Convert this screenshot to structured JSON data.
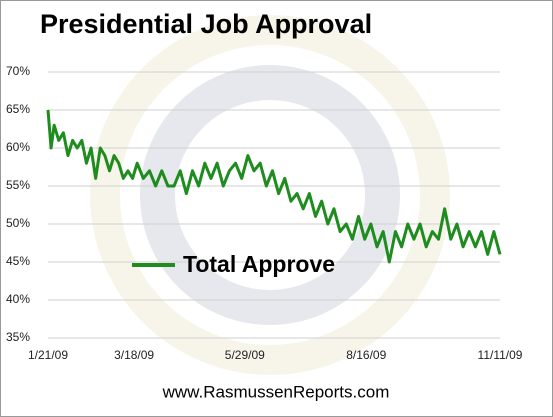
{
  "chart_data": {
    "type": "line",
    "title": "Presidential Job Approval",
    "source": "www.RasmussenReports.com",
    "x": [
      "1/21/09",
      "1/23/09",
      "1/25/09",
      "1/28/09",
      "1/31/09",
      "2/3/09",
      "2/6/09",
      "2/9/09",
      "2/12/09",
      "2/15/09",
      "2/18/09",
      "2/21/09",
      "2/24/09",
      "2/27/09",
      "3/2/09",
      "3/5/09",
      "3/8/09",
      "3/11/09",
      "3/14/09",
      "3/17/09",
      "3/20/09",
      "3/24/09",
      "3/28/09",
      "4/1/09",
      "4/5/09",
      "4/9/09",
      "4/13/09",
      "4/17/09",
      "4/21/09",
      "4/25/09",
      "4/29/09",
      "5/3/09",
      "5/7/09",
      "5/11/09",
      "5/15/09",
      "5/19/09",
      "5/23/09",
      "5/27/09",
      "5/31/09",
      "6/4/09",
      "6/8/09",
      "6/12/09",
      "6/16/09",
      "6/20/09",
      "6/24/09",
      "6/28/09",
      "7/2/09",
      "7/6/09",
      "7/10/09",
      "7/14/09",
      "7/18/09",
      "7/22/09",
      "7/26/09",
      "7/30/09",
      "8/3/09",
      "8/7/09",
      "8/11/09",
      "8/15/09",
      "8/19/09",
      "8/23/09",
      "8/27/09",
      "8/31/09",
      "9/4/09",
      "9/8/09",
      "9/12/09",
      "9/16/09",
      "9/20/09",
      "9/24/09",
      "9/28/09",
      "10/2/09",
      "10/6/09",
      "10/10/09",
      "10/14/09",
      "10/18/09",
      "10/22/09",
      "10/26/09",
      "10/30/09",
      "11/3/09",
      "11/7/09",
      "11/11/09"
    ],
    "series": [
      {
        "name": "Total Approve",
        "color": "#1f8c1f",
        "values": [
          65,
          60,
          63,
          61,
          62,
          59,
          61,
          60,
          61,
          58,
          60,
          56,
          60,
          59,
          57,
          59,
          58,
          56,
          57,
          56,
          58,
          56,
          57,
          55,
          57,
          55,
          55,
          57,
          54,
          57,
          55,
          58,
          56,
          58,
          55,
          57,
          58,
          56,
          59,
          57,
          58,
          55,
          57,
          54,
          56,
          53,
          54,
          52,
          54,
          51,
          53,
          50,
          52,
          49,
          50,
          48,
          51,
          48,
          50,
          47,
          49,
          45,
          49,
          47,
          50,
          48,
          50,
          47,
          49,
          48,
          52,
          48,
          50,
          47,
          49,
          47,
          49,
          46,
          49,
          46
        ]
      }
    ],
    "xlim": [
      "1/21/09",
      "11/11/09"
    ],
    "xticks": [
      "1/21/09",
      "3/18/09",
      "5/29/09",
      "8/16/09",
      "11/11/09"
    ],
    "ylim": [
      35,
      70
    ],
    "yticks": [
      {
        "value": 35,
        "label": "35%"
      },
      {
        "value": 40,
        "label": "40%"
      },
      {
        "value": 45,
        "label": "45%"
      },
      {
        "value": 50,
        "label": "50%"
      },
      {
        "value": 55,
        "label": "55%"
      },
      {
        "value": 60,
        "label": "60%"
      },
      {
        "value": 65,
        "label": "65%"
      },
      {
        "value": 70,
        "label": "70%"
      }
    ],
    "grid": true
  }
}
